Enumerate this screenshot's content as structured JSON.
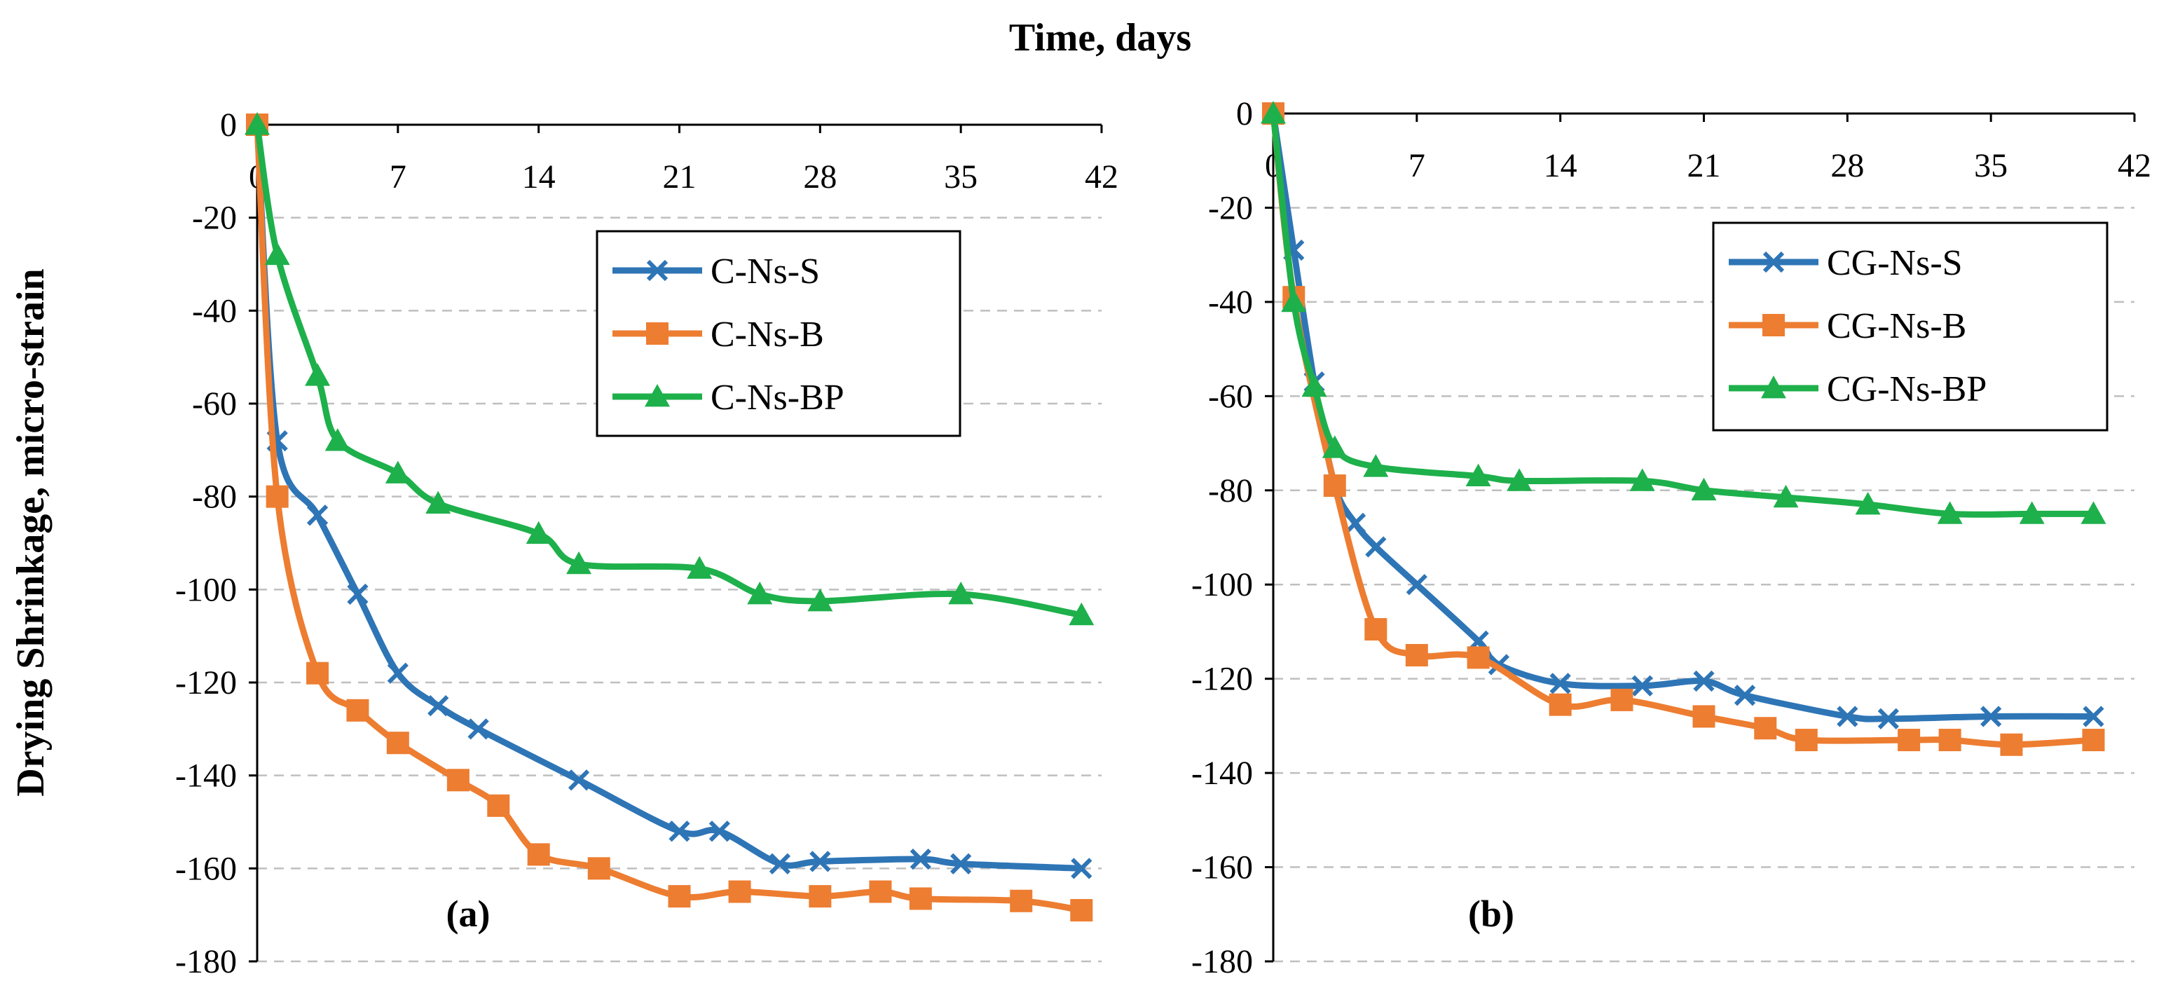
{
  "figure": {
    "xlabel": "Time, days",
    "ylabel": "Drying Shrinkage, micro-strain"
  },
  "chart_data": [
    {
      "type": "line",
      "panel_label": "(a)",
      "xlim": [
        0,
        42
      ],
      "ylim": [
        -180,
        0
      ],
      "x_ticks": [
        0,
        7,
        14,
        21,
        28,
        35,
        42
      ],
      "y_ticks": [
        0,
        -20,
        -40,
        -60,
        -80,
        -100,
        -120,
        -140,
        -160,
        -180
      ],
      "grid": "horizontal dashed",
      "legend_position": "top-right",
      "series": [
        {
          "name": "C-Ns-S",
          "color": "#2E75B6",
          "marker": "x",
          "x": [
            0,
            1,
            3,
            5,
            7,
            9,
            11,
            16,
            21,
            23,
            26,
            28,
            33,
            35,
            41
          ],
          "y": [
            0,
            -68,
            -84,
            -101,
            -118,
            -125,
            -130,
            -141,
            -152,
            -152,
            -159,
            -158.5,
            -158,
            -159,
            -160
          ]
        },
        {
          "name": "C-Ns-B",
          "color": "#ED7D31",
          "marker": "square",
          "x": [
            0,
            1,
            3,
            5,
            7,
            10,
            12,
            14,
            17,
            21,
            24,
            28,
            31,
            33,
            38,
            41
          ],
          "y": [
            0,
            -80,
            -118,
            -126,
            -133,
            -141,
            -146.5,
            -157,
            -160,
            -166,
            -165,
            -166,
            -165,
            -166.5,
            -167,
            -169
          ]
        },
        {
          "name": "C-Ns-BP",
          "color": "#1EB04B",
          "marker": "triangle",
          "x": [
            0,
            1,
            3,
            4,
            7,
            9,
            14,
            16,
            22,
            25,
            28,
            35,
            41
          ],
          "y": [
            0,
            -28,
            -54,
            -68,
            -75,
            -81.5,
            -88,
            -94.5,
            -95.5,
            -101,
            -102.5,
            -101,
            -105.5
          ]
        }
      ]
    },
    {
      "type": "line",
      "panel_label": "(b)",
      "xlim": [
        0,
        42
      ],
      "ylim": [
        -180,
        0
      ],
      "x_ticks": [
        0,
        7,
        14,
        21,
        28,
        35,
        42
      ],
      "y_ticks": [
        0,
        -20,
        -40,
        -60,
        -80,
        -100,
        -120,
        -140,
        -160,
        -180
      ],
      "grid": "horizontal dashed",
      "legend_position": "top-right",
      "series": [
        {
          "name": "CG-Ns-S",
          "color": "#2E75B6",
          "marker": "x",
          "x": [
            0,
            1,
            2,
            3,
            4,
            5,
            7,
            10,
            11,
            14,
            18,
            21,
            23,
            28,
            30,
            35,
            40
          ],
          "y": [
            0,
            -29,
            -57,
            -79,
            -87,
            -92,
            -100,
            -112,
            -117,
            -121,
            -121.5,
            -120.5,
            -123.5,
            -128,
            -128.5,
            -128,
            -128
          ]
        },
        {
          "name": "CG-Ns-B",
          "color": "#ED7D31",
          "marker": "square",
          "x": [
            0,
            1,
            3,
            5,
            7,
            10,
            14,
            17,
            21,
            24,
            26,
            31,
            33,
            36,
            40
          ],
          "y": [
            0,
            -39,
            -79,
            -109.5,
            -115,
            -115.5,
            -125.5,
            -124.5,
            -128,
            -130.5,
            -133,
            -133,
            -133,
            -134,
            -133
          ]
        },
        {
          "name": "CG-Ns-BP",
          "color": "#1EB04B",
          "marker": "triangle",
          "x": [
            0,
            1,
            2,
            3,
            5,
            10,
            12,
            18,
            21,
            25,
            29,
            33,
            37,
            40
          ],
          "y": [
            0,
            -40,
            -58,
            -71,
            -75,
            -77,
            -78,
            -78,
            -80,
            -81.5,
            -83,
            -85,
            -85,
            -85
          ]
        }
      ]
    }
  ]
}
